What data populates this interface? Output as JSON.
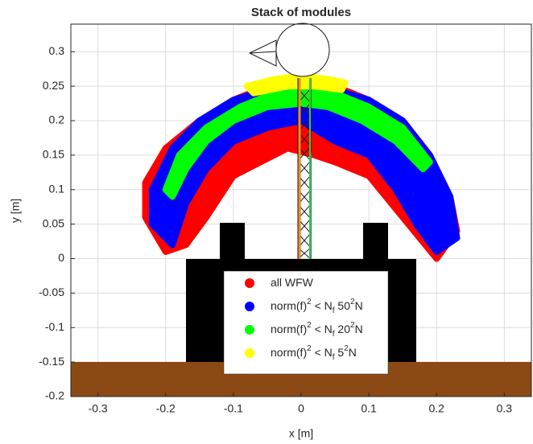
{
  "chart_data": {
    "type": "region",
    "title": "Stack of modules",
    "x_label": "x [m]",
    "y_label": "y [m]",
    "xlim": [
      -0.34,
      0.34
    ],
    "ylim": [
      -0.2,
      0.34
    ],
    "xticks": [
      -0.3,
      -0.2,
      -0.1,
      0,
      0.1,
      0.2,
      0.3
    ],
    "yticks": [
      -0.2,
      -0.15,
      -0.1,
      -0.05,
      0,
      0.05,
      0.1,
      0.15,
      0.2,
      0.25,
      0.3
    ],
    "grid": true,
    "legend": "south",
    "series": [
      {
        "name": "all WFW",
        "color": "#ff0000",
        "x": [
          -0.2,
          -0.23,
          -0.23,
          -0.2,
          -0.15,
          -0.1,
          -0.05,
          0,
          0.05,
          0.1,
          0.15,
          0.19,
          0.22,
          0.23,
          0.2,
          0.15,
          0.1,
          0.05,
          0.02,
          -0.02,
          -0.06,
          -0.1,
          -0.14,
          -0.17
        ],
        "y": [
          0.01,
          0.06,
          0.11,
          0.16,
          0.2,
          0.23,
          0.25,
          0.26,
          0.25,
          0.23,
          0.2,
          0.15,
          0.09,
          0.04,
          0.0,
          0.06,
          0.12,
          0.14,
          0.15,
          0.16,
          0.14,
          0.12,
          0.06,
          0.02
        ]
      },
      {
        "name": "norm(f)^2 < N_f 50^2N",
        "color": "#0000ff",
        "x": [
          -0.22,
          -0.22,
          -0.19,
          -0.15,
          -0.1,
          -0.05,
          0,
          0.05,
          0.1,
          0.15,
          0.19,
          0.22,
          0.23,
          0.2,
          0.17,
          0.14,
          0.1,
          0.05,
          0,
          -0.05,
          -0.1,
          -0.14,
          -0.17,
          -0.19
        ],
        "y": [
          0.05,
          0.1,
          0.16,
          0.2,
          0.23,
          0.245,
          0.25,
          0.245,
          0.23,
          0.2,
          0.15,
          0.09,
          0.03,
          0.01,
          0.05,
          0.1,
          0.15,
          0.17,
          0.2,
          0.19,
          0.17,
          0.13,
          0.08,
          0.02
        ]
      },
      {
        "name": "norm(f)^2 < N_f 20^2N",
        "color": "#00ff00",
        "x": [
          -0.2,
          -0.18,
          -0.14,
          -0.09,
          -0.04,
          0,
          0.05,
          0.1,
          0.15,
          0.19,
          0.18,
          0.14,
          0.09,
          0.04,
          0,
          -0.05,
          -0.1,
          -0.14,
          -0.17,
          -0.19
        ],
        "y": [
          0.1,
          0.15,
          0.19,
          0.22,
          0.24,
          0.245,
          0.24,
          0.22,
          0.19,
          0.14,
          0.13,
          0.17,
          0.2,
          0.22,
          0.225,
          0.22,
          0.2,
          0.17,
          0.13,
          0.09
        ]
      },
      {
        "name": "norm(f)^2 < N_f 5^2N",
        "color": "#ffff00",
        "x": [
          -0.08,
          -0.04,
          0,
          0.04,
          0.065,
          0.06,
          0.02,
          -0.02,
          -0.07
        ],
        "y": [
          0.25,
          0.26,
          0.265,
          0.26,
          0.255,
          0.245,
          0.25,
          0.25,
          0.24
        ]
      }
    ]
  }
}
